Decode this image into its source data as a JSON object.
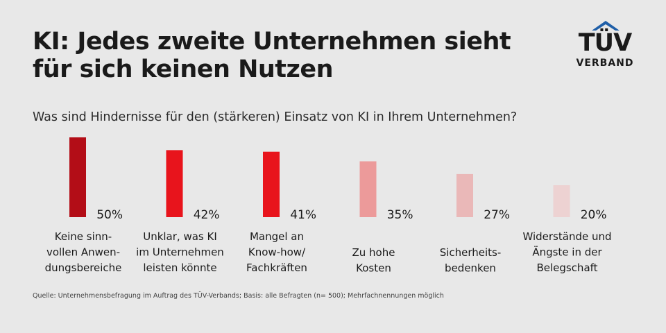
{
  "header": {
    "title_line1": "KI: Jedes zweite Unternehmen sieht",
    "title_line2": "für sich keinen Nutzen",
    "question": "Was sind Hindernisse für den (stärkeren) Einsatz von KI in Ihrem Unternehmen?"
  },
  "logo": {
    "word": "TÜV",
    "sub": "VERBAND",
    "roof_color": "#1f5fa8"
  },
  "chart_data": {
    "type": "bar",
    "title": "KI: Jedes zweite Unternehmen sieht für sich keinen Nutzen",
    "subtitle": "Was sind Hindernisse für den (stärkeren) Einsatz von KI in Ihrem Unternehmen?",
    "unit": "%",
    "ylim": [
      0,
      50
    ],
    "grid": false,
    "categories": [
      [
        "Keine sinn-",
        "vollen Anwen-",
        "dungsbereiche"
      ],
      [
        "Unklar, was KI",
        "im Unternehmen",
        "leisten könnte"
      ],
      [
        "Mangel an",
        "Know-how/",
        "Fachkräften"
      ],
      [
        "Zu hohe",
        "Kosten"
      ],
      [
        "Sicherheits-",
        "bedenken"
      ],
      [
        "Widerstände und",
        "Ängste in der",
        "Belegschaft"
      ]
    ],
    "values": [
      50,
      42,
      41,
      35,
      27,
      20
    ],
    "value_labels": [
      "50%",
      "42%",
      "41%",
      "35%",
      "27%",
      "20%"
    ],
    "colors": [
      "#b30d17",
      "#e8141c",
      "#e8141c",
      "#ec9a9a",
      "#eab8b8",
      "#edd2d2"
    ]
  },
  "footer": {
    "source": "Quelle: Unternehmensbefragung im Auftrag des TÜV-Verbands; Basis: alle Befragten (n= 500); Mehrfachnennungen möglich"
  }
}
